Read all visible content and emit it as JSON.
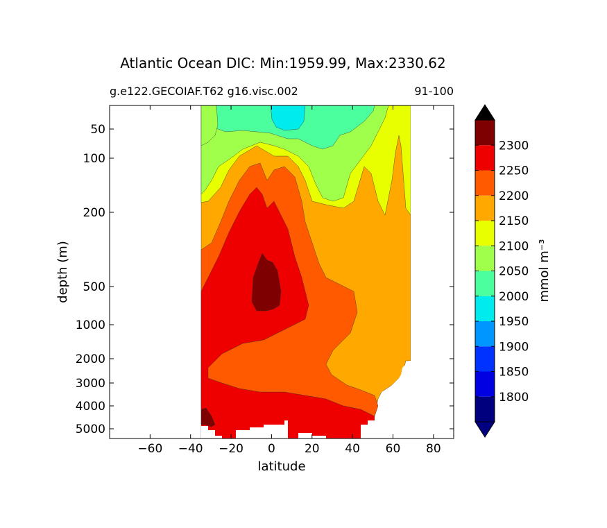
{
  "chart_data": {
    "type": "contourf",
    "title": "Atlantic Ocean DIC: Min:1959.99, Max:2330.62",
    "subtitle_left": "g.e122.GECOIAF.T62 g16.visc.002",
    "subtitle_right": "91-100",
    "xlabel": "latitude",
    "ylabel": "depth (m)",
    "xlim": [
      -80,
      90
    ],
    "xticks": [
      -60,
      -40,
      -20,
      0,
      20,
      40,
      60,
      80
    ],
    "xtick_labels": [
      "−60",
      "−40",
      "−20",
      "0",
      "20",
      "40",
      "60",
      "80"
    ],
    "ylim": [
      5500,
      0
    ],
    "yscale": "nonlinear (stretched upper ocean)",
    "yticks": [
      50,
      100,
      200,
      500,
      1000,
      2000,
      3000,
      4000,
      5000
    ],
    "data_extent_lat": [
      -34,
      68
    ],
    "colorbar": {
      "label": "mmol m⁻³",
      "extend": "both",
      "levels": [
        1750,
        1800,
        1850,
        1900,
        1950,
        2000,
        2050,
        2100,
        2150,
        2200,
        2250,
        2300,
        2350
      ],
      "tick_labels": [
        "1800",
        "1850",
        "1900",
        "1950",
        "2000",
        "2050",
        "2100",
        "2150",
        "2200",
        "2250",
        "2300"
      ],
      "colors": [
        "#00007f",
        "#0000e0",
        "#0032ff",
        "#0096ff",
        "#00ecec",
        "#4bff9f",
        "#9fff4b",
        "#e8ff00",
        "#ffa800",
        "#ff5a00",
        "#ee0000",
        "#7f0000"
      ],
      "under_color": "#000080",
      "over_color": "#000000"
    },
    "regions": [
      {
        "band": "1950-2000",
        "description": "near-surface minimum around 0-10 latitude, 0-50 m"
      },
      {
        "band": "2000-2050",
        "description": "surface layer 0-70 m"
      },
      {
        "band": "2300+",
        "description": "core near -5 latitude, 350-800 m; bottom water near -34 latitude"
      }
    ]
  }
}
